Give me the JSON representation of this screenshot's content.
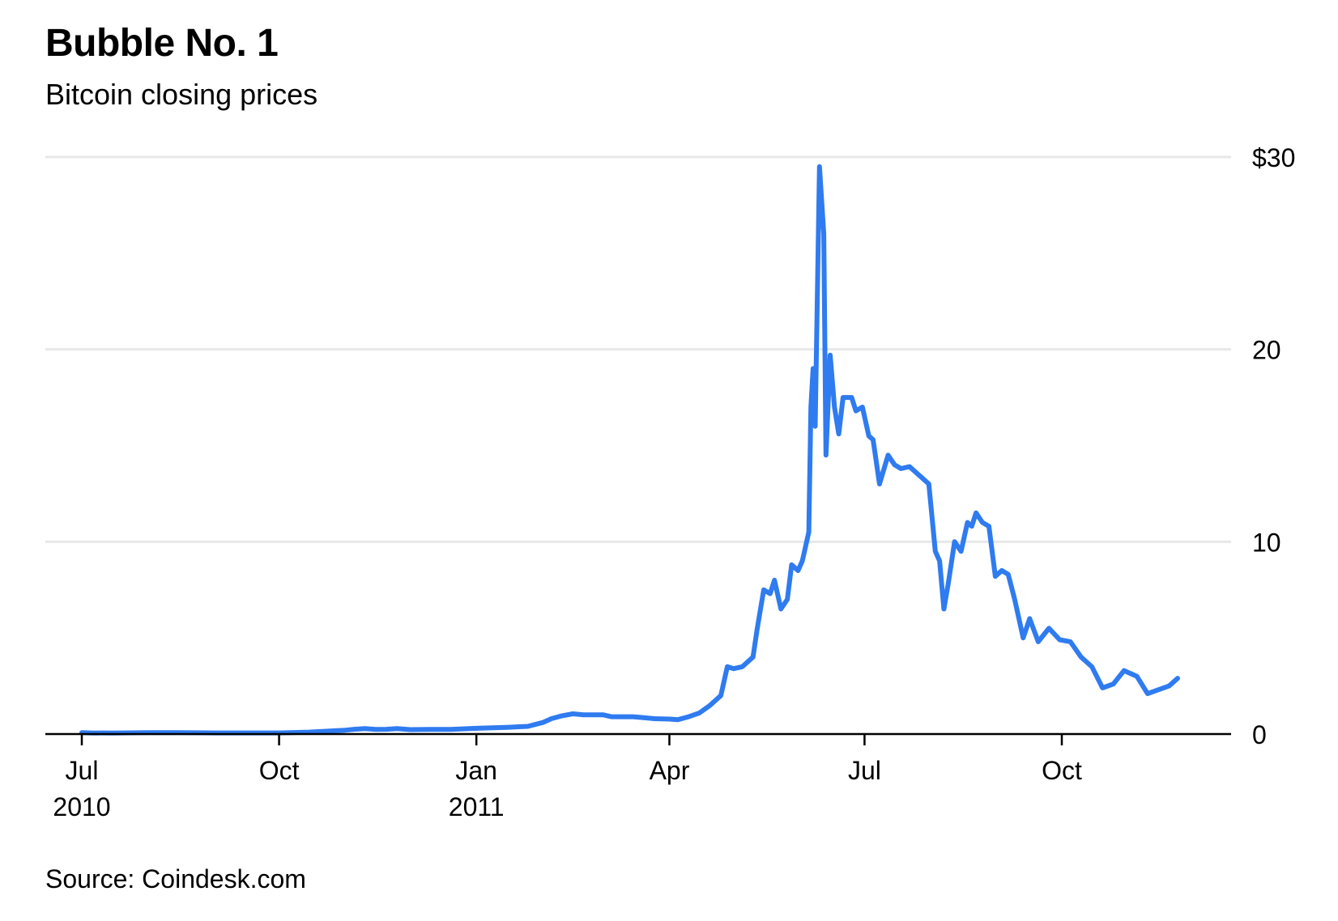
{
  "header": {
    "title": "Bubble No. 1",
    "subtitle": "Bitcoin closing prices"
  },
  "footer": {
    "source": "Source: Coindesk.com"
  },
  "colors": {
    "line": "#2f7bf0",
    "grid": "#e8e8e8",
    "axis": "#000000"
  },
  "chart_data": {
    "type": "line",
    "title": "Bubble No. 1",
    "subtitle": "Bitcoin closing prices",
    "xlabel": "",
    "ylabel": "",
    "xlim": [
      "2010-07-01",
      "2011-11-24"
    ],
    "ylim": [
      0,
      30
    ],
    "grid": true,
    "y_axis_position": "right",
    "y_ticks": [
      {
        "value": 0,
        "label": "0"
      },
      {
        "value": 10,
        "label": "10"
      },
      {
        "value": 20,
        "label": "20"
      },
      {
        "value": 30,
        "label": "$30"
      }
    ],
    "x_ticks": [
      {
        "date": "2010-07-01",
        "label": "Jul",
        "sublabel": "2010"
      },
      {
        "date": "2010-10-01",
        "label": "Oct",
        "sublabel": ""
      },
      {
        "date": "2011-01-01",
        "label": "Jan",
        "sublabel": "2011"
      },
      {
        "date": "2011-04-01",
        "label": "Apr",
        "sublabel": ""
      },
      {
        "date": "2011-07-01",
        "label": "Jul",
        "sublabel": ""
      },
      {
        "date": "2011-10-01",
        "label": "Oct",
        "sublabel": ""
      }
    ],
    "series": [
      {
        "x": [
          "2010-07-01",
          "2010-07-05",
          "2010-07-07",
          "2010-07-10",
          "2010-07-15",
          "2010-08-01",
          "2010-08-15",
          "2010-09-01",
          "2010-09-15",
          "2010-10-01",
          "2010-10-15",
          "2010-11-01",
          "2010-11-05",
          "2010-11-10",
          "2010-11-15",
          "2010-11-20",
          "2010-11-25",
          "2010-12-01",
          "2010-12-10",
          "2010-12-20",
          "2011-01-01",
          "2011-01-15",
          "2011-01-25",
          "2011-02-01",
          "2011-02-05",
          "2011-02-10",
          "2011-02-15",
          "2011-02-20",
          "2011-03-01",
          "2011-03-05",
          "2011-03-10",
          "2011-03-15",
          "2011-03-20",
          "2011-03-25",
          "2011-04-01",
          "2011-04-05",
          "2011-04-10",
          "2011-04-15",
          "2011-04-20",
          "2011-04-25",
          "2011-04-28",
          "2011-05-01",
          "2011-05-05",
          "2011-05-10",
          "2011-05-12",
          "2011-05-15",
          "2011-05-18",
          "2011-05-20",
          "2011-05-23",
          "2011-05-26",
          "2011-05-28",
          "2011-05-31",
          "2011-06-02",
          "2011-06-05",
          "2011-06-06",
          "2011-06-07",
          "2011-06-08",
          "2011-06-10",
          "2011-06-12",
          "2011-06-13",
          "2011-06-15",
          "2011-06-17",
          "2011-06-19",
          "2011-06-21",
          "2011-06-25",
          "2011-06-27",
          "2011-06-30",
          "2011-07-03",
          "2011-07-05",
          "2011-07-08",
          "2011-07-12",
          "2011-07-15",
          "2011-07-18",
          "2011-07-22",
          "2011-07-26",
          "2011-07-31",
          "2011-08-03",
          "2011-08-05",
          "2011-08-07",
          "2011-08-09",
          "2011-08-12",
          "2011-08-15",
          "2011-08-18",
          "2011-08-20",
          "2011-08-22",
          "2011-08-25",
          "2011-08-28",
          "2011-08-31",
          "2011-09-03",
          "2011-09-06",
          "2011-09-09",
          "2011-09-13",
          "2011-09-16",
          "2011-09-20",
          "2011-09-25",
          "2011-09-30",
          "2011-10-05",
          "2011-10-10",
          "2011-10-15",
          "2011-10-20",
          "2011-10-25",
          "2011-10-30",
          "2011-11-05",
          "2011-11-10",
          "2011-11-15",
          "2011-11-20",
          "2011-11-24"
        ],
        "values": [
          0.07,
          0.06,
          0.05,
          0.06,
          0.05,
          0.07,
          0.07,
          0.06,
          0.06,
          0.06,
          0.1,
          0.2,
          0.25,
          0.28,
          0.24,
          0.25,
          0.28,
          0.23,
          0.24,
          0.24,
          0.3,
          0.35,
          0.4,
          0.6,
          0.8,
          0.95,
          1.05,
          1.0,
          1.0,
          0.9,
          0.9,
          0.9,
          0.85,
          0.8,
          0.78,
          0.75,
          0.9,
          1.1,
          1.5,
          2.0,
          3.5,
          3.4,
          3.5,
          4.0,
          5.5,
          7.5,
          7.3,
          8.0,
          6.5,
          7.0,
          8.8,
          8.5,
          9.0,
          10.5,
          17.0,
          19.0,
          16.0,
          29.5,
          26.0,
          14.5,
          19.7,
          17.0,
          15.6,
          17.5,
          17.5,
          16.8,
          17.0,
          15.5,
          15.3,
          13.0,
          14.5,
          14.0,
          13.8,
          13.9,
          13.5,
          13.0,
          9.5,
          9.0,
          6.5,
          7.8,
          10.0,
          9.5,
          11.0,
          10.8,
          11.5,
          11.0,
          10.8,
          8.2,
          8.5,
          8.3,
          7.0,
          5.0,
          6.0,
          4.8,
          5.5,
          4.9,
          4.8,
          4.0,
          3.5,
          2.4,
          2.6,
          3.3,
          3.0,
          2.1,
          2.3,
          2.5,
          2.9
        ]
      }
    ]
  }
}
